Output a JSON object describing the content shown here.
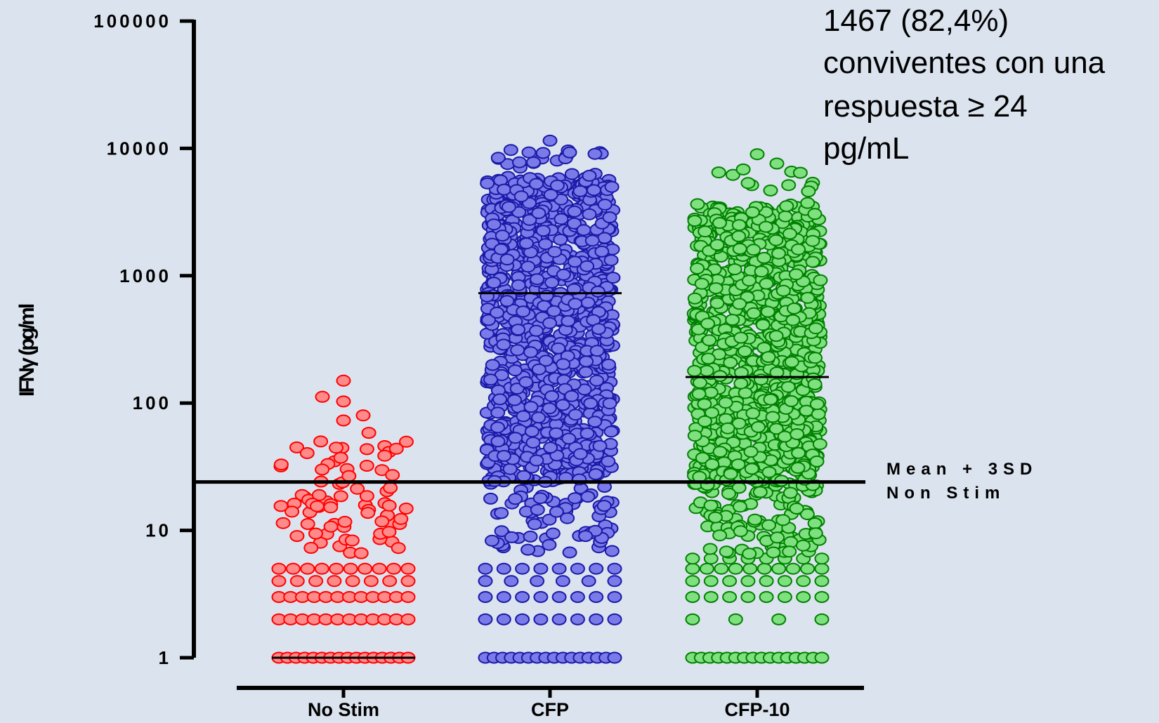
{
  "chart_data": {
    "type": "scatter",
    "title": "",
    "ylabel": "IFNγ (pg/ml",
    "yscale": "log",
    "ylim": [
      1,
      100000
    ],
    "yticks": [
      {
        "value": 100000,
        "label": "100000"
      },
      {
        "value": 10000,
        "label": "10000"
      },
      {
        "value": 1000,
        "label": "1000"
      },
      {
        "value": 100,
        "label": "100"
      },
      {
        "value": 10,
        "label": "10"
      },
      {
        "value": 1,
        "label": "1"
      }
    ],
    "categories": [
      "No Stim",
      "CFP",
      "CFP-10"
    ],
    "series": [
      {
        "category": "No Stim",
        "color": "#ff0000",
        "fill": "#ff8a8a",
        "mean": 1,
        "values_desc": "min 1, max 150, most values 1-30"
      },
      {
        "category": "CFP",
        "color": "#1a1aa8",
        "fill": "#7a7ae8",
        "mean": 730,
        "values_desc": "min 1, max 11500, most values 30-5000"
      },
      {
        "category": "CFP-10",
        "color": "#008000",
        "fill": "#7ee07e",
        "mean": 160,
        "values_desc": "min 1, max 9000, most values 20-3000"
      }
    ],
    "reference_line": {
      "value": 24,
      "label_line1": "Mean + 3SD",
      "label_line2": "Non Stim"
    },
    "annotation": {
      "lines": [
        "1467 (82,4%)",
        "conviventes con una",
        "respuesta ≥ 24",
        "pg/mL"
      ]
    }
  }
}
